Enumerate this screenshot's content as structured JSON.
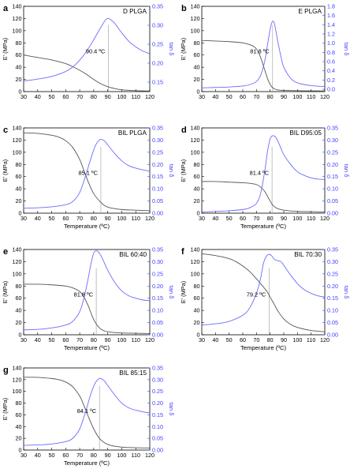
{
  "figure": {
    "colors": {
      "modulus": "#555555",
      "tan_delta": "#6b6bff",
      "axis": "#000000",
      "right_axis": "#4040ff"
    }
  },
  "chart_data": [
    {
      "panel": "a",
      "title": "D PLGA",
      "type": "line",
      "xlabel": "Temperature (ºC)",
      "ylabel": "E' (MPa)",
      "y2label": "tan δ",
      "xlim": [
        30,
        120
      ],
      "xticks": [
        30,
        40,
        50,
        60,
        70,
        80,
        90,
        100,
        110,
        120
      ],
      "ylim": [
        0,
        140
      ],
      "yticks": [
        0,
        20,
        40,
        60,
        80,
        100,
        120,
        140
      ],
      "y2lim": [
        0.125,
        0.35
      ],
      "y2ticks": [
        0.15,
        0.2,
        0.25,
        0.3,
        0.35
      ],
      "y2ticklabels": [
        "0.15",
        "0.20",
        "0.25",
        "0.30",
        "0.35"
      ],
      "xlabel_shown": false,
      "peak_temperature": 90.4,
      "peak_label": "90.4 ºC",
      "series": [
        {
          "axis": "left",
          "x": [
            30,
            40,
            50,
            60,
            65,
            70,
            75,
            80,
            85,
            90,
            95,
            100,
            110,
            120
          ],
          "y": [
            60,
            56,
            52,
            46,
            41,
            35,
            28,
            20,
            13,
            8,
            5,
            3,
            1.5,
            1
          ]
        },
        {
          "axis": "right",
          "x": [
            30,
            40,
            50,
            60,
            65,
            70,
            75,
            80,
            85,
            88,
            90,
            92,
            95,
            100,
            105,
            110,
            115,
            120
          ],
          "y": [
            0.153,
            0.158,
            0.165,
            0.178,
            0.19,
            0.208,
            0.232,
            0.262,
            0.294,
            0.312,
            0.318,
            0.315,
            0.305,
            0.28,
            0.258,
            0.243,
            0.232,
            0.225
          ]
        }
      ]
    },
    {
      "panel": "b",
      "title": "E PLGA",
      "type": "line",
      "xlabel": "Temperature (ºC)",
      "ylabel": "E' (MPa)",
      "y2label": "tan δ",
      "xlim": [
        30,
        120
      ],
      "xticks": [
        30,
        40,
        50,
        60,
        70,
        80,
        90,
        100,
        110,
        120
      ],
      "ylim": [
        0,
        140
      ],
      "yticks": [
        0,
        20,
        40,
        60,
        80,
        100,
        120,
        140
      ],
      "y2lim": [
        -0.05,
        1.8
      ],
      "y2ticks": [
        0.0,
        0.2,
        0.4,
        0.6,
        0.8,
        1.0,
        1.2,
        1.4,
        1.6,
        1.8
      ],
      "y2ticklabels": [
        "0.0",
        "0.2",
        "0.4",
        "0.6",
        "0.8",
        "1.0",
        "1.2",
        "1.4",
        "1.6",
        "1.8"
      ],
      "xlabel_shown": false,
      "peak_temperature": 81.8,
      "peak_label": "81.8 ºC",
      "series": [
        {
          "axis": "left",
          "x": [
            30,
            40,
            50,
            60,
            65,
            68,
            70,
            72,
            74,
            76,
            78,
            80,
            82,
            85,
            90,
            100,
            110,
            120
          ],
          "y": [
            84,
            83,
            82,
            80,
            77,
            74,
            70,
            62,
            50,
            36,
            22,
            12,
            6,
            3,
            2,
            1.5,
            1.2,
            1
          ]
        },
        {
          "axis": "right",
          "x": [
            30,
            40,
            50,
            60,
            65,
            70,
            73,
            76,
            78,
            80,
            81,
            82,
            83,
            84,
            86,
            88,
            90,
            95,
            100,
            110,
            120
          ],
          "y": [
            0.03,
            0.04,
            0.05,
            0.07,
            0.1,
            0.17,
            0.3,
            0.6,
            0.95,
            1.3,
            1.42,
            1.48,
            1.44,
            1.3,
            0.98,
            0.7,
            0.48,
            0.24,
            0.14,
            0.08,
            0.06
          ]
        }
      ]
    },
    {
      "panel": "c",
      "title": "BIL PLGA",
      "type": "line",
      "xlabel": "Temperature (ºC)",
      "ylabel": "E' (MPa)",
      "y2label": "tan δ",
      "xlim": [
        30,
        120
      ],
      "xticks": [
        30,
        40,
        50,
        60,
        70,
        80,
        90,
        100,
        110,
        120
      ],
      "ylim": [
        0,
        140
      ],
      "yticks": [
        0,
        20,
        40,
        60,
        80,
        100,
        120,
        140
      ],
      "y2lim": [
        0.0,
        0.35
      ],
      "y2ticks": [
        0.0,
        0.05,
        0.1,
        0.15,
        0.2,
        0.25,
        0.3,
        0.35
      ],
      "y2ticklabels": [
        "0.00",
        "0.05",
        "0.10",
        "0.15",
        "0.20",
        "0.25",
        "0.30",
        "0.35"
      ],
      "xlabel_shown": true,
      "peak_temperature": 85.1,
      "peak_label": "85.1 ºC",
      "series": [
        {
          "axis": "left",
          "x": [
            30,
            40,
            50,
            55,
            60,
            65,
            70,
            73,
            76,
            80,
            85,
            90,
            100,
            110,
            120
          ],
          "y": [
            132,
            131,
            128,
            125,
            119,
            108,
            88,
            70,
            52,
            32,
            18,
            10,
            6,
            5,
            4
          ]
        },
        {
          "axis": "right",
          "x": [
            30,
            40,
            50,
            60,
            65,
            70,
            74,
            78,
            81,
            84,
            86,
            88,
            90,
            95,
            100,
            105,
            110,
            115,
            120
          ],
          "y": [
            0.02,
            0.022,
            0.026,
            0.035,
            0.048,
            0.085,
            0.15,
            0.225,
            0.275,
            0.3,
            0.302,
            0.295,
            0.28,
            0.245,
            0.215,
            0.195,
            0.185,
            0.178,
            0.172
          ]
        }
      ]
    },
    {
      "panel": "d",
      "title": "BIL D95:05",
      "type": "line",
      "xlabel": "Temperature (ºC)",
      "ylabel": "E' (MPa)",
      "y2label": "tan δ",
      "xlim": [
        30,
        120
      ],
      "xticks": [
        30,
        40,
        50,
        60,
        70,
        80,
        90,
        100,
        110,
        120
      ],
      "ylim": [
        0,
        140
      ],
      "yticks": [
        0,
        20,
        40,
        60,
        80,
        100,
        120,
        140
      ],
      "y2lim": [
        0.0,
        0.35
      ],
      "y2ticks": [
        0.0,
        0.05,
        0.1,
        0.15,
        0.2,
        0.25,
        0.3,
        0.35
      ],
      "y2ticklabels": [
        "0.00",
        "0.05",
        "0.10",
        "0.15",
        "0.20",
        "0.25",
        "0.30",
        "0.35"
      ],
      "xlabel_shown": true,
      "peak_temperature": 81.4,
      "peak_label": "81.4 ºC",
      "series": [
        {
          "axis": "left",
          "x": [
            30,
            40,
            50,
            60,
            65,
            70,
            73,
            76,
            78,
            80,
            82,
            85,
            90,
            100,
            110,
            120
          ],
          "y": [
            52,
            52,
            51,
            50,
            49,
            47,
            43,
            36,
            28,
            20,
            13,
            8,
            5,
            3,
            2.5,
            2
          ]
        },
        {
          "axis": "right",
          "x": [
            30,
            40,
            50,
            60,
            65,
            70,
            73,
            76,
            78,
            80,
            82,
            84,
            86,
            88,
            90,
            95,
            100,
            105,
            110,
            115,
            120
          ],
          "y": [
            0.005,
            0.007,
            0.01,
            0.015,
            0.022,
            0.04,
            0.08,
            0.17,
            0.25,
            0.305,
            0.318,
            0.312,
            0.292,
            0.265,
            0.24,
            0.2,
            0.17,
            0.155,
            0.145,
            0.14,
            0.138
          ]
        }
      ]
    },
    {
      "panel": "e",
      "title": "BIL 60:40",
      "type": "line",
      "xlabel": "Temperature (ºC)",
      "ylabel": "E' (MPa)",
      "y2label": "tan δ",
      "xlim": [
        30,
        120
      ],
      "xticks": [
        30,
        40,
        50,
        60,
        70,
        80,
        90,
        100,
        110,
        120
      ],
      "ylim": [
        0,
        140
      ],
      "yticks": [
        0,
        20,
        40,
        60,
        80,
        100,
        120,
        140
      ],
      "y2lim": [
        0.0,
        0.35
      ],
      "y2ticks": [
        0.0,
        0.05,
        0.1,
        0.15,
        0.2,
        0.25,
        0.3,
        0.35
      ],
      "y2ticklabels": [
        "0.00",
        "0.05",
        "0.10",
        "0.15",
        "0.20",
        "0.25",
        "0.30",
        "0.35"
      ],
      "xlabel_shown": true,
      "peak_temperature": 81.8,
      "peak_label": "81.8 ºC",
      "series": [
        {
          "axis": "left",
          "x": [
            30,
            40,
            50,
            60,
            65,
            70,
            73,
            76,
            78,
            80,
            83,
            86,
            90,
            100,
            110,
            120
          ],
          "y": [
            83,
            83,
            82,
            80,
            77,
            71,
            62,
            48,
            36,
            25,
            14,
            8,
            5,
            3,
            2.5,
            2
          ]
        },
        {
          "axis": "right",
          "x": [
            30,
            40,
            50,
            60,
            65,
            70,
            73,
            76,
            78,
            80,
            82,
            84,
            86,
            88,
            90,
            95,
            100,
            105,
            110,
            115,
            120
          ],
          "y": [
            0.02,
            0.022,
            0.028,
            0.04,
            0.055,
            0.095,
            0.15,
            0.23,
            0.29,
            0.335,
            0.345,
            0.335,
            0.315,
            0.29,
            0.265,
            0.215,
            0.18,
            0.16,
            0.15,
            0.143,
            0.14
          ]
        }
      ]
    },
    {
      "panel": "f",
      "title": "BIL 70:30",
      "type": "line",
      "xlabel": "Temperature (ºC)",
      "ylabel": "E' (MPa)",
      "y2label": "tan δ",
      "xlim": [
        30,
        120
      ],
      "xticks": [
        30,
        40,
        50,
        60,
        70,
        80,
        90,
        100,
        110,
        120
      ],
      "ylim": [
        0,
        140
      ],
      "yticks": [
        0,
        20,
        40,
        60,
        80,
        100,
        120,
        140
      ],
      "y2lim": [
        0.0,
        0.35
      ],
      "y2ticks": [
        0.0,
        0.05,
        0.1,
        0.15,
        0.2,
        0.25,
        0.3,
        0.35
      ],
      "y2ticklabels": [
        "0.00",
        "0.05",
        "0.10",
        "0.15",
        "0.20",
        "0.25",
        "0.30",
        "0.35"
      ],
      "xlabel_shown": true,
      "peak_temperature": 79.2,
      "peak_label": "79.2 ºC",
      "series": [
        {
          "axis": "left",
          "x": [
            30,
            40,
            50,
            55,
            60,
            65,
            70,
            73,
            76,
            78,
            80,
            83,
            86,
            90,
            95,
            100,
            110,
            120
          ],
          "y": [
            133,
            130,
            125,
            120,
            113,
            104,
            92,
            84,
            76,
            70,
            62,
            50,
            38,
            26,
            17,
            12,
            7,
            5
          ]
        },
        {
          "axis": "right",
          "x": [
            30,
            40,
            50,
            60,
            65,
            70,
            73,
            75,
            77,
            79,
            81,
            83,
            85,
            88,
            90,
            95,
            100,
            105,
            110,
            115,
            120
          ],
          "y": [
            0.04,
            0.045,
            0.055,
            0.08,
            0.11,
            0.17,
            0.23,
            0.29,
            0.32,
            0.33,
            0.325,
            0.31,
            0.305,
            0.3,
            0.285,
            0.245,
            0.21,
            0.185,
            0.17,
            0.16,
            0.155
          ]
        }
      ]
    },
    {
      "panel": "g",
      "title": "BIL 85:15",
      "type": "line",
      "xlabel": "Temperature (ºC)",
      "ylabel": "E' (MPa)",
      "y2label": "tan δ",
      "xlim": [
        30,
        120
      ],
      "xticks": [
        30,
        40,
        50,
        60,
        70,
        80,
        90,
        100,
        110,
        120
      ],
      "ylim": [
        0,
        140
      ],
      "yticks": [
        0,
        20,
        40,
        60,
        80,
        100,
        120,
        140
      ],
      "y2lim": [
        0.0,
        0.35
      ],
      "y2ticks": [
        0.0,
        0.05,
        0.1,
        0.15,
        0.2,
        0.25,
        0.3,
        0.35
      ],
      "y2ticklabels": [
        "0.00",
        "0.05",
        "0.10",
        "0.15",
        "0.20",
        "0.25",
        "0.30",
        "0.35"
      ],
      "xlabel_shown": true,
      "peak_temperature": 84.1,
      "peak_label": "84.1 ºC",
      "series": [
        {
          "axis": "left",
          "x": [
            30,
            40,
            50,
            55,
            60,
            65,
            70,
            73,
            76,
            80,
            84,
            88,
            92,
            100,
            110,
            120
          ],
          "y": [
            124,
            124,
            122,
            120,
            116,
            108,
            92,
            76,
            58,
            36,
            20,
            12,
            8,
            5,
            4,
            3.5
          ]
        },
        {
          "axis": "right",
          "x": [
            30,
            40,
            50,
            60,
            65,
            70,
            74,
            78,
            81,
            84,
            86,
            88,
            90,
            95,
            100,
            105,
            110,
            115,
            120
          ],
          "y": [
            0.02,
            0.022,
            0.026,
            0.036,
            0.05,
            0.09,
            0.16,
            0.24,
            0.285,
            0.305,
            0.302,
            0.292,
            0.275,
            0.235,
            0.2,
            0.18,
            0.17,
            0.163,
            0.158
          ]
        }
      ]
    }
  ]
}
